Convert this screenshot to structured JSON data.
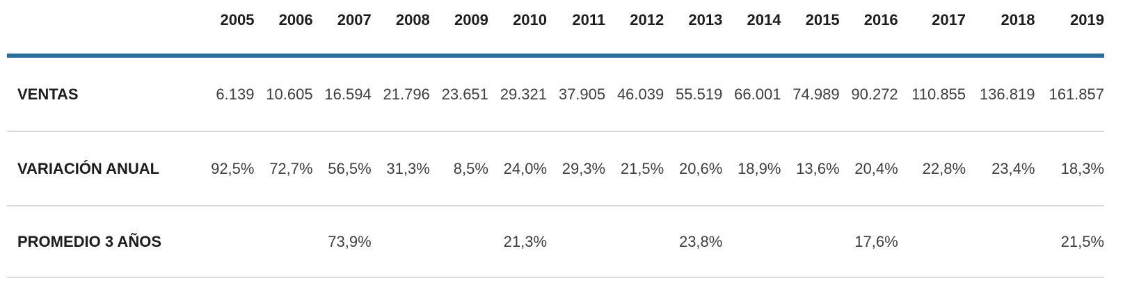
{
  "colors": {
    "accent_rule": "#2a6d9a",
    "row_divider": "#d9d9d9",
    "header_text": "#1d1d1d",
    "value_text": "#3e3e3e"
  },
  "table": {
    "corner_label": "",
    "years": [
      "2005",
      "2006",
      "2007",
      "2008",
      "2009",
      "2010",
      "2011",
      "2012",
      "2013",
      "2014",
      "2015",
      "2016",
      "2017",
      "2018",
      "2019"
    ],
    "rows": [
      {
        "label": "VENTAS",
        "values": [
          "6.139",
          "10.605",
          "16.594",
          "21.796",
          "23.651",
          "29.321",
          "37.905",
          "46.039",
          "55.519",
          "66.001",
          "74.989",
          "90.272",
          "110.855",
          "136.819",
          "161.857"
        ]
      },
      {
        "label": "VARIACIÓN ANUAL",
        "values": [
          "92,5%",
          "72,7%",
          "56,5%",
          "31,3%",
          "8,5%",
          "24,0%",
          "29,3%",
          "21,5%",
          "20,6%",
          "18,9%",
          "13,6%",
          "20,4%",
          "22,8%",
          "23,4%",
          "18,3%"
        ]
      },
      {
        "label": "PROMEDIO 3 AÑOS",
        "values": [
          "",
          "",
          "73,9%",
          "",
          "",
          "21,3%",
          "",
          "",
          "23,8%",
          "",
          "",
          "17,6%",
          "",
          "",
          "21,5%"
        ]
      }
    ]
  },
  "chart_data": {
    "type": "table",
    "title": "",
    "categories": [
      "2005",
      "2006",
      "2007",
      "2008",
      "2009",
      "2010",
      "2011",
      "2012",
      "2013",
      "2014",
      "2015",
      "2016",
      "2017",
      "2018",
      "2019"
    ],
    "series": [
      {
        "name": "VENTAS",
        "values": [
          6139,
          10605,
          16594,
          21796,
          23651,
          29321,
          37905,
          46039,
          55519,
          66001,
          74989,
          90272,
          110855,
          136819,
          161857
        ]
      },
      {
        "name": "VARIACIÓN ANUAL (%)",
        "values": [
          92.5,
          72.7,
          56.5,
          31.3,
          8.5,
          24.0,
          29.3,
          21.5,
          20.6,
          18.9,
          13.6,
          20.4,
          22.8,
          23.4,
          18.3
        ]
      },
      {
        "name": "PROMEDIO 3 AÑOS (%)",
        "values": [
          null,
          null,
          73.9,
          null,
          null,
          21.3,
          null,
          null,
          23.8,
          null,
          null,
          17.6,
          null,
          null,
          21.5
        ]
      }
    ]
  }
}
